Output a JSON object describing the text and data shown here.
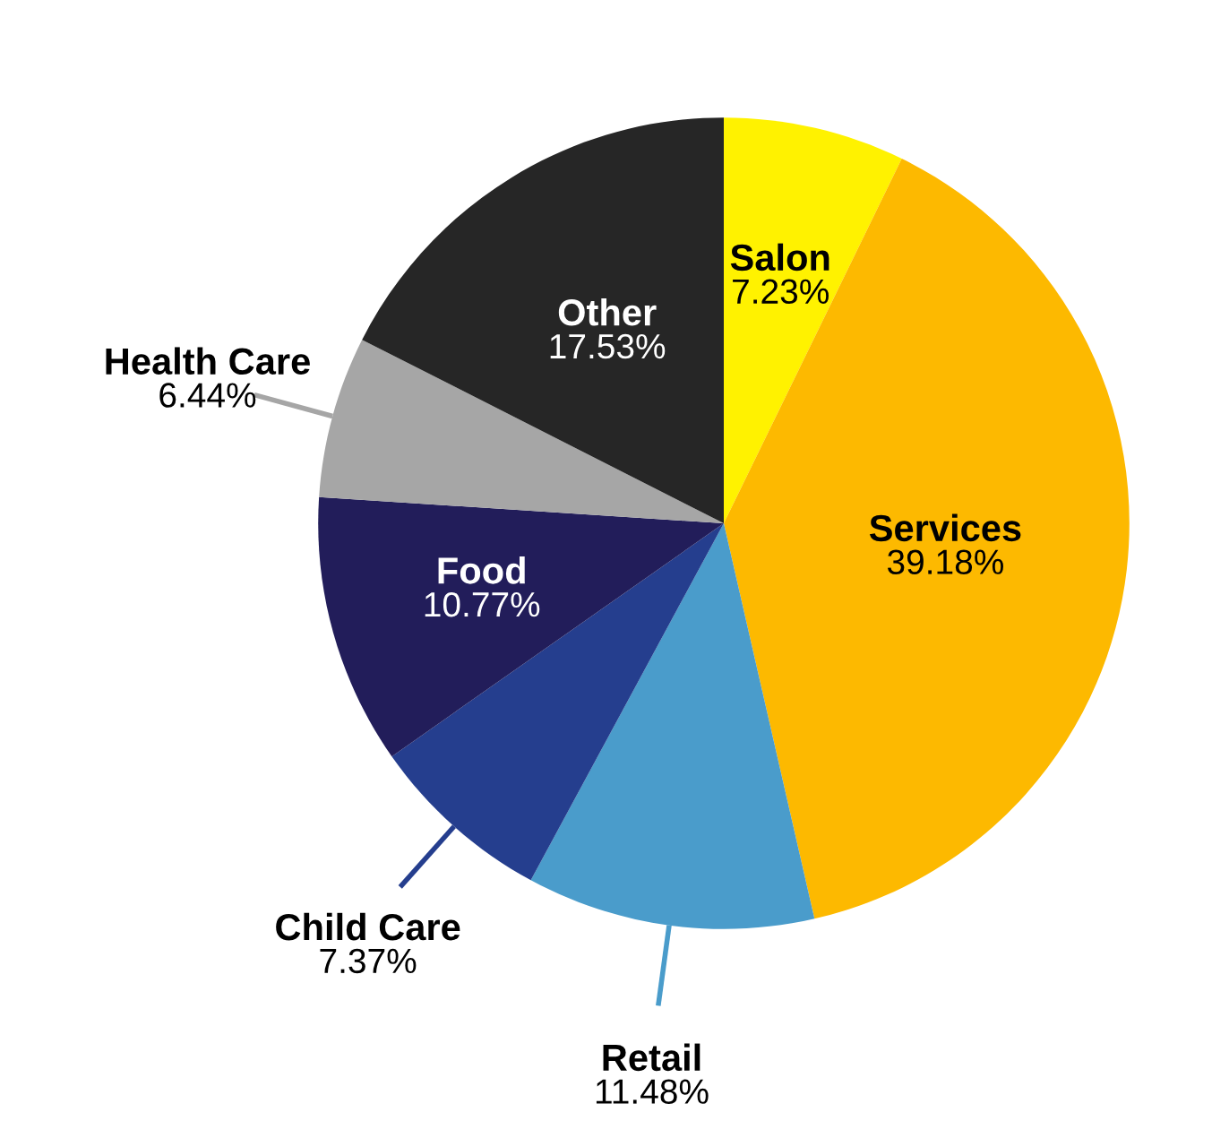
{
  "chart_data": {
    "type": "pie",
    "categories": [
      "Salon",
      "Services",
      "Retail",
      "Child Care",
      "Food",
      "Health Care",
      "Other"
    ],
    "values": [
      7.23,
      39.18,
      11.48,
      7.37,
      10.77,
      6.44,
      17.53
    ],
    "value_labels": [
      "7.23%",
      "39.18%",
      "11.48%",
      "7.37%",
      "10.77%",
      "6.44%",
      "17.53%"
    ],
    "colors": [
      "#fff200",
      "#fdb900",
      "#4a9ccb",
      "#253e8e",
      "#221d5a",
      "#a6a6a6",
      "#262626"
    ]
  }
}
